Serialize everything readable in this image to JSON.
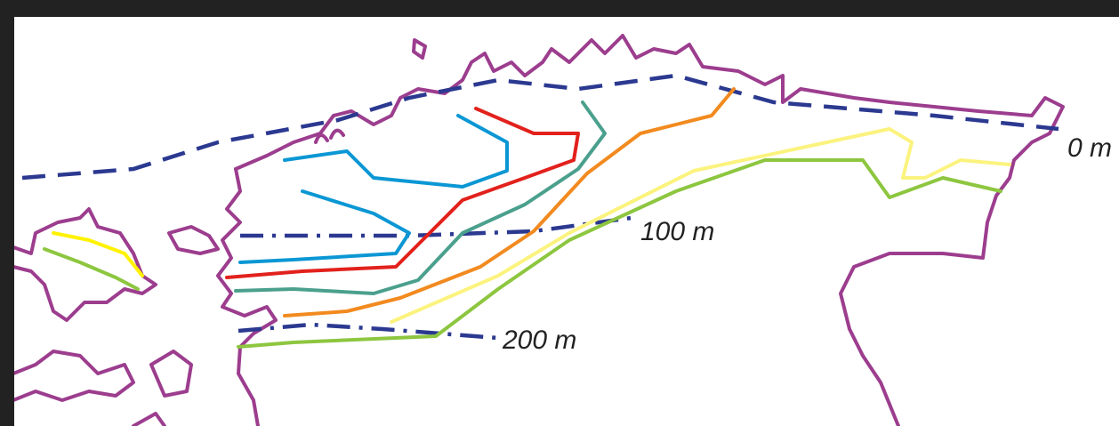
{
  "labels": [
    "0 m",
    "100 m",
    "200 m"
  ]
}
